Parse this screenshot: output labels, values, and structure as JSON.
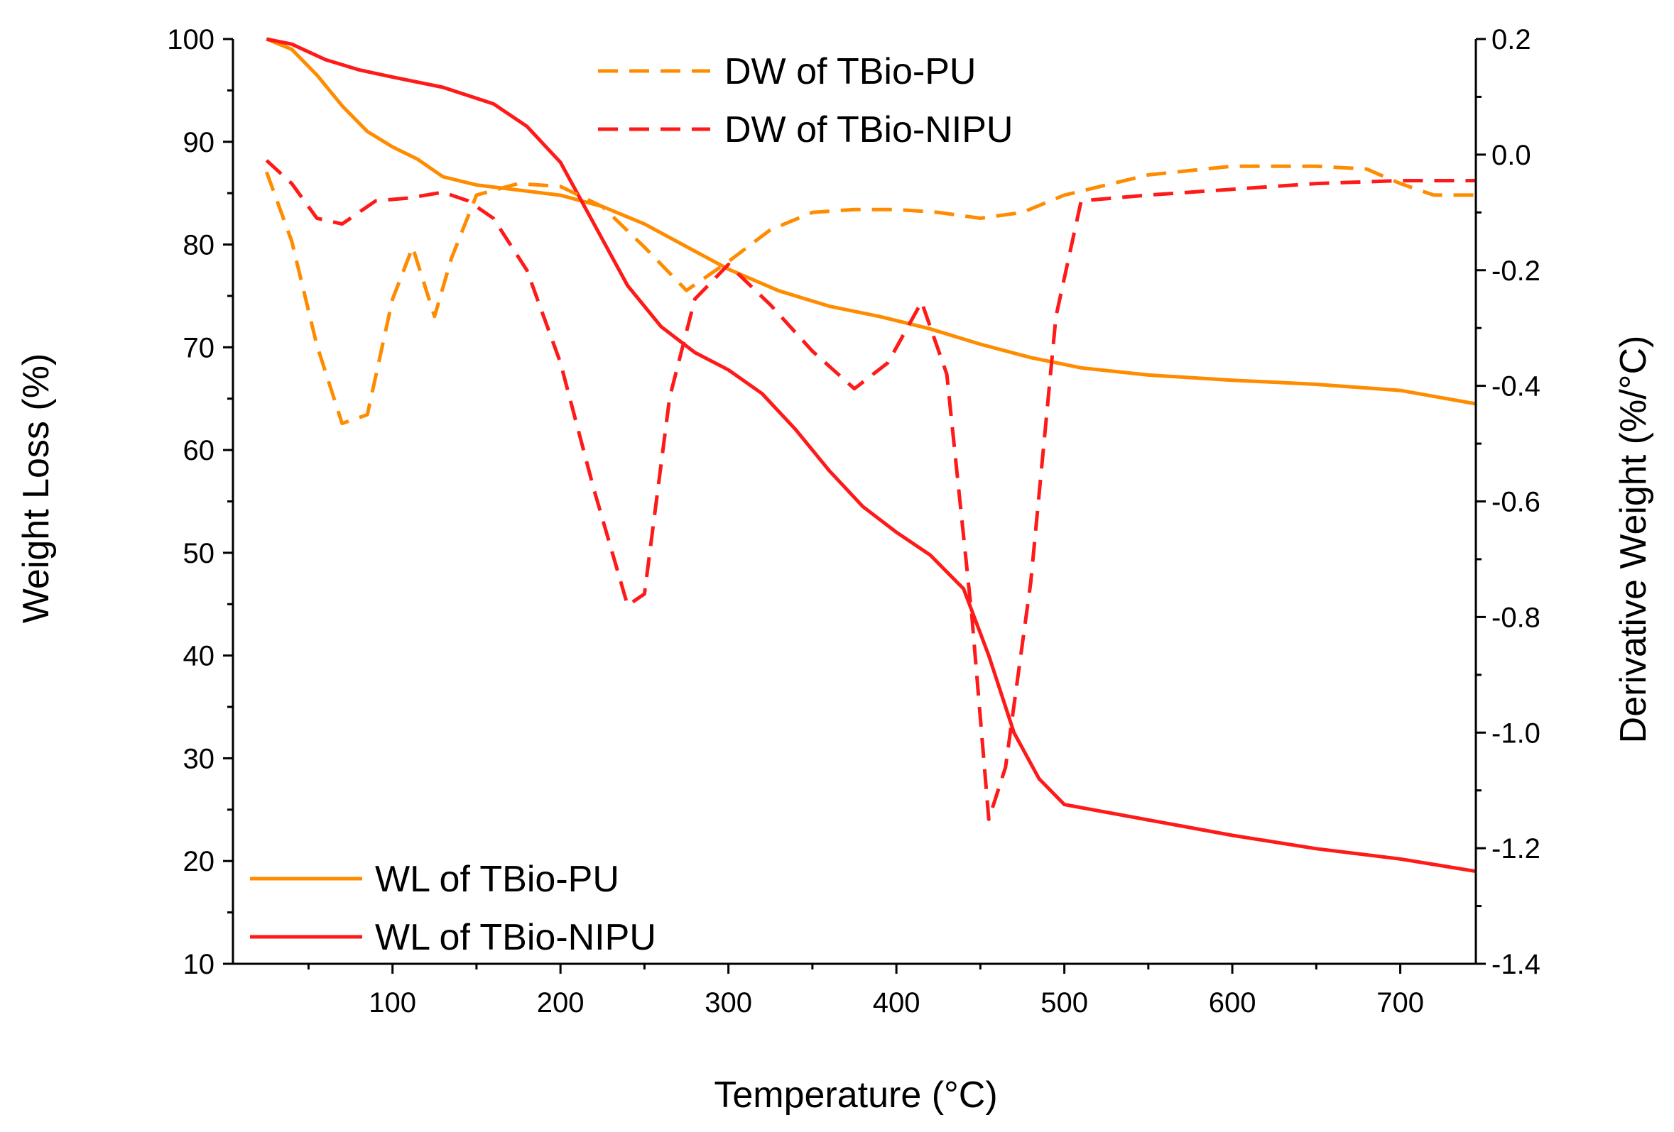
{
  "chart_data": {
    "type": "line",
    "xlabel": "Temperature (°C)",
    "ylabel_left": "Weight Loss (%)",
    "ylabel_right": "Derivative Weight (%/°C)",
    "xlim": [
      5,
      745
    ],
    "ylim_left": [
      10,
      100
    ],
    "ylim_right": [
      -1.4,
      0.2
    ],
    "x_ticks": [
      100,
      200,
      300,
      400,
      500,
      600,
      700
    ],
    "x_minor_ticks": [
      50,
      150,
      250,
      350,
      450,
      550,
      650
    ],
    "y_left_ticks": [
      10,
      20,
      30,
      40,
      50,
      60,
      70,
      80,
      90,
      100
    ],
    "y_right_ticks": [
      0.2,
      0.0,
      -0.2,
      -0.4,
      -0.6,
      -0.8,
      -1.0,
      -1.2,
      -1.4
    ],
    "y_right_tick_labels": [
      "0.2",
      "0.0",
      "-0.2",
      "-0.4",
      "-0.6",
      "-0.8",
      "-1.0",
      "-1.2",
      "-1.4"
    ],
    "grid": false,
    "legend_left_placement": "bottom-left",
    "legend_right_placement": "top-center",
    "series": [
      {
        "name": "WL of TBio-PU",
        "axis": "left",
        "style": "solid",
        "color": "#FF8C00",
        "points": [
          [
            25,
            100
          ],
          [
            40,
            99
          ],
          [
            55,
            96.5
          ],
          [
            70,
            93.5
          ],
          [
            85,
            91
          ],
          [
            100,
            89.5
          ],
          [
            115,
            88.3
          ],
          [
            130,
            86.6
          ],
          [
            150,
            85.8
          ],
          [
            175,
            85.3
          ],
          [
            200,
            84.8
          ],
          [
            225,
            83.7
          ],
          [
            250,
            82
          ],
          [
            275,
            79.8
          ],
          [
            300,
            77.6
          ],
          [
            330,
            75.5
          ],
          [
            360,
            74
          ],
          [
            390,
            73
          ],
          [
            420,
            71.8
          ],
          [
            450,
            70.3
          ],
          [
            480,
            69
          ],
          [
            510,
            68
          ],
          [
            550,
            67.3
          ],
          [
            600,
            66.8
          ],
          [
            650,
            66.4
          ],
          [
            700,
            65.8
          ],
          [
            745,
            64.5
          ]
        ]
      },
      {
        "name": "WL of TBio-NIPU",
        "axis": "left",
        "style": "solid",
        "color": "#FF1A1A",
        "points": [
          [
            25,
            100
          ],
          [
            40,
            99.5
          ],
          [
            60,
            98
          ],
          [
            80,
            97
          ],
          [
            100,
            96.3
          ],
          [
            130,
            95.3
          ],
          [
            160,
            93.7
          ],
          [
            180,
            91.5
          ],
          [
            200,
            88
          ],
          [
            220,
            82
          ],
          [
            240,
            76
          ],
          [
            260,
            72
          ],
          [
            280,
            69.5
          ],
          [
            300,
            67.8
          ],
          [
            320,
            65.5
          ],
          [
            340,
            62
          ],
          [
            360,
            58
          ],
          [
            380,
            54.5
          ],
          [
            400,
            52
          ],
          [
            420,
            49.8
          ],
          [
            440,
            46.5
          ],
          [
            455,
            40
          ],
          [
            470,
            32.5
          ],
          [
            485,
            28
          ],
          [
            500,
            25.5
          ],
          [
            550,
            24
          ],
          [
            600,
            22.5
          ],
          [
            650,
            21.2
          ],
          [
            700,
            20.2
          ],
          [
            745,
            19
          ]
        ]
      },
      {
        "name": "DW of TBio-PU",
        "axis": "right",
        "style": "dashed",
        "color": "#FF8C00",
        "points": [
          [
            25,
            -0.03
          ],
          [
            40,
            -0.15
          ],
          [
            55,
            -0.33
          ],
          [
            70,
            -0.465
          ],
          [
            85,
            -0.45
          ],
          [
            100,
            -0.25
          ],
          [
            112,
            -0.16
          ],
          [
            125,
            -0.28
          ],
          [
            135,
            -0.18
          ],
          [
            150,
            -0.07
          ],
          [
            175,
            -0.05
          ],
          [
            200,
            -0.055
          ],
          [
            225,
            -0.09
          ],
          [
            250,
            -0.16
          ],
          [
            275,
            -0.235
          ],
          [
            300,
            -0.185
          ],
          [
            325,
            -0.13
          ],
          [
            350,
            -0.1
          ],
          [
            375,
            -0.095
          ],
          [
            400,
            -0.095
          ],
          [
            425,
            -0.1
          ],
          [
            450,
            -0.11
          ],
          [
            475,
            -0.1
          ],
          [
            500,
            -0.07
          ],
          [
            550,
            -0.035
          ],
          [
            600,
            -0.02
          ],
          [
            650,
            -0.02
          ],
          [
            680,
            -0.025
          ],
          [
            700,
            -0.05
          ],
          [
            720,
            -0.07
          ],
          [
            745,
            -0.07
          ]
        ]
      },
      {
        "name": "DW of TBio-NIPU",
        "axis": "right",
        "style": "dashed",
        "color": "#FF1A1A",
        "points": [
          [
            25,
            -0.01
          ],
          [
            40,
            -0.05
          ],
          [
            55,
            -0.11
          ],
          [
            70,
            -0.12
          ],
          [
            90,
            -0.08
          ],
          [
            110,
            -0.075
          ],
          [
            130,
            -0.065
          ],
          [
            145,
            -0.08
          ],
          [
            160,
            -0.11
          ],
          [
            180,
            -0.2
          ],
          [
            200,
            -0.36
          ],
          [
            220,
            -0.58
          ],
          [
            240,
            -0.78
          ],
          [
            250,
            -0.76
          ],
          [
            265,
            -0.42
          ],
          [
            280,
            -0.25
          ],
          [
            300,
            -0.19
          ],
          [
            325,
            -0.26
          ],
          [
            350,
            -0.34
          ],
          [
            375,
            -0.405
          ],
          [
            395,
            -0.36
          ],
          [
            415,
            -0.255
          ],
          [
            430,
            -0.38
          ],
          [
            445,
            -0.8
          ],
          [
            455,
            -1.15
          ],
          [
            465,
            -1.06
          ],
          [
            480,
            -0.74
          ],
          [
            495,
            -0.28
          ],
          [
            510,
            -0.08
          ],
          [
            550,
            -0.07
          ],
          [
            600,
            -0.06
          ],
          [
            650,
            -0.05
          ],
          [
            700,
            -0.045
          ],
          [
            745,
            -0.045
          ]
        ]
      }
    ]
  }
}
